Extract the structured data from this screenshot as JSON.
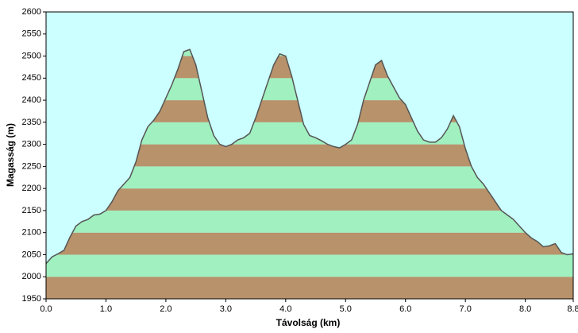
{
  "chart_data": {
    "type": "area",
    "x_label": "Távolság  (km)",
    "y_label": "Magasság (m)",
    "x": [
      0.0,
      0.1,
      0.2,
      0.3,
      0.4,
      0.5,
      0.6,
      0.7,
      0.8,
      0.9,
      1.0,
      1.1,
      1.2,
      1.3,
      1.4,
      1.5,
      1.6,
      1.7,
      1.8,
      1.9,
      2.0,
      2.1,
      2.2,
      2.3,
      2.4,
      2.5,
      2.6,
      2.7,
      2.8,
      2.9,
      3.0,
      3.1,
      3.2,
      3.3,
      3.4,
      3.5,
      3.6,
      3.7,
      3.8,
      3.9,
      4.0,
      4.1,
      4.2,
      4.3,
      4.4,
      4.5,
      4.6,
      4.7,
      4.8,
      4.9,
      5.0,
      5.1,
      5.2,
      5.3,
      5.4,
      5.5,
      5.6,
      5.7,
      5.8,
      5.9,
      6.0,
      6.1,
      6.2,
      6.3,
      6.4,
      6.5,
      6.6,
      6.7,
      6.8,
      6.9,
      7.0,
      7.1,
      7.2,
      7.3,
      7.4,
      7.5,
      7.6,
      7.7,
      7.8,
      7.9,
      8.0,
      8.1,
      8.2,
      8.3,
      8.4,
      8.5,
      8.6,
      8.7,
      8.8
    ],
    "values": [
      2030,
      2045,
      2052,
      2060,
      2090,
      2115,
      2125,
      2130,
      2140,
      2142,
      2150,
      2170,
      2195,
      2210,
      2225,
      2260,
      2310,
      2340,
      2355,
      2375,
      2405,
      2435,
      2470,
      2510,
      2515,
      2480,
      2420,
      2360,
      2320,
      2300,
      2295,
      2300,
      2310,
      2315,
      2325,
      2360,
      2400,
      2440,
      2480,
      2505,
      2500,
      2455,
      2400,
      2345,
      2320,
      2315,
      2308,
      2300,
      2295,
      2292,
      2300,
      2310,
      2345,
      2400,
      2440,
      2480,
      2490,
      2455,
      2430,
      2405,
      2390,
      2360,
      2330,
      2310,
      2305,
      2305,
      2315,
      2335,
      2365,
      2340,
      2290,
      2250,
      2225,
      2210,
      2190,
      2170,
      2150,
      2140,
      2130,
      2115,
      2100,
      2088,
      2080,
      2068,
      2070,
      2075,
      2055,
      2050,
      2052
    ],
    "xlim": [
      0,
      8.8
    ],
    "xticks": [
      {
        "value": 0,
        "label": "0.0"
      },
      {
        "value": 1,
        "label": "1.0"
      },
      {
        "value": 2,
        "label": "2.0"
      },
      {
        "value": 3,
        "label": "3.0"
      },
      {
        "value": 4,
        "label": "4.0"
      },
      {
        "value": 5,
        "label": "5.0"
      },
      {
        "value": 6,
        "label": "6.0"
      },
      {
        "value": 7,
        "label": "7.0"
      },
      {
        "value": 8,
        "label": "8.0"
      },
      {
        "value": 8.8,
        "label": "8.8"
      }
    ],
    "ylim": [
      1950,
      2600
    ],
    "yticks": [
      1950,
      2000,
      2050,
      2100,
      2150,
      2200,
      2250,
      2300,
      2350,
      2400,
      2450,
      2500,
      2550,
      2600
    ],
    "band_colors": [
      "#b8926a",
      "#a0f0c0"
    ],
    "line_color": "#555555",
    "background": "#ccffff"
  }
}
